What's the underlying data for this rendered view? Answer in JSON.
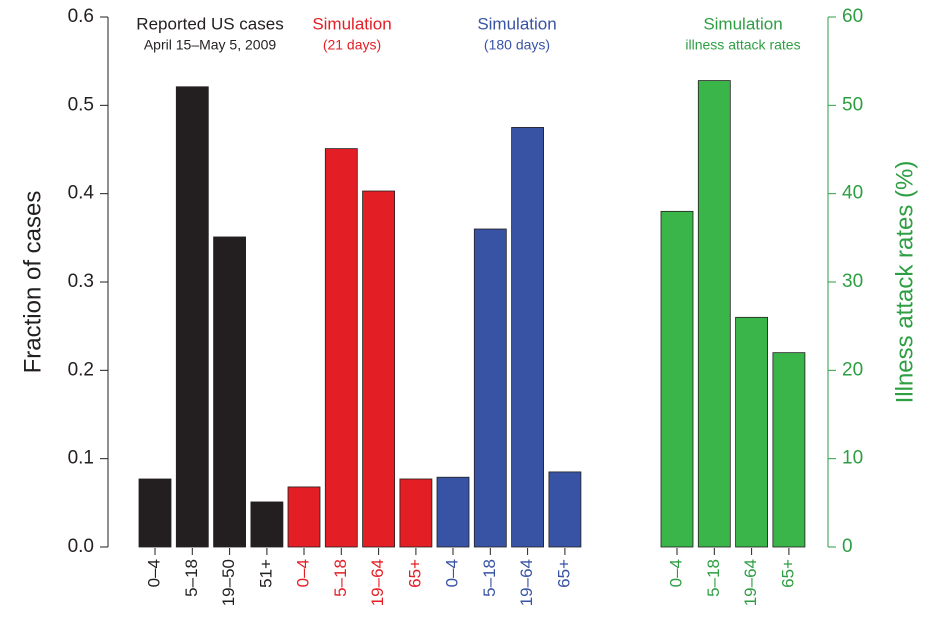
{
  "chart_data": {
    "type": "bar",
    "ylabel": "Fraction of cases",
    "y2label": "Illness attack rates (%)",
    "ylim": [
      0,
      0.6
    ],
    "yticks": [
      {
        "value": 0,
        "label": "0.0"
      },
      0.1,
      0.2,
      0.3,
      0.4,
      0.5,
      0.6
    ],
    "y2lim": [
      0,
      60
    ],
    "y2ticks": [
      0,
      10,
      20,
      30,
      40,
      50,
      60
    ],
    "y2color": "#2e9e43",
    "series": [
      {
        "name": "Reported US cases",
        "subtitle": "April 15–May 5, 2009",
        "color": "#231f20",
        "categories": [
          "0–4",
          "5–18",
          "19–50",
          "51+"
        ],
        "values": [
          0.077,
          0.521,
          0.351,
          0.051
        ]
      },
      {
        "name": "Simulation",
        "subtitle": "(21 days)",
        "color": "#e31e24",
        "categories": [
          "0–4",
          "5–18",
          "19–64",
          "65+"
        ],
        "values": [
          0.068,
          0.451,
          0.403,
          0.077
        ]
      },
      {
        "name": "Simulation",
        "subtitle": "(180 days)",
        "color": "#3953a4",
        "categories": [
          "0–4",
          "5–18",
          "19–64",
          "65+"
        ],
        "values": [
          0.079,
          0.36,
          0.475,
          0.085
        ]
      },
      {
        "name": "Simulation",
        "subtitle": "illness attack rates",
        "color": "#3ab54a",
        "axis": "y2",
        "categories": [
          "0–4",
          "5–18",
          "19–64",
          "65+"
        ],
        "values": [
          38.0,
          52.8,
          26.0,
          22.0
        ]
      }
    ]
  }
}
